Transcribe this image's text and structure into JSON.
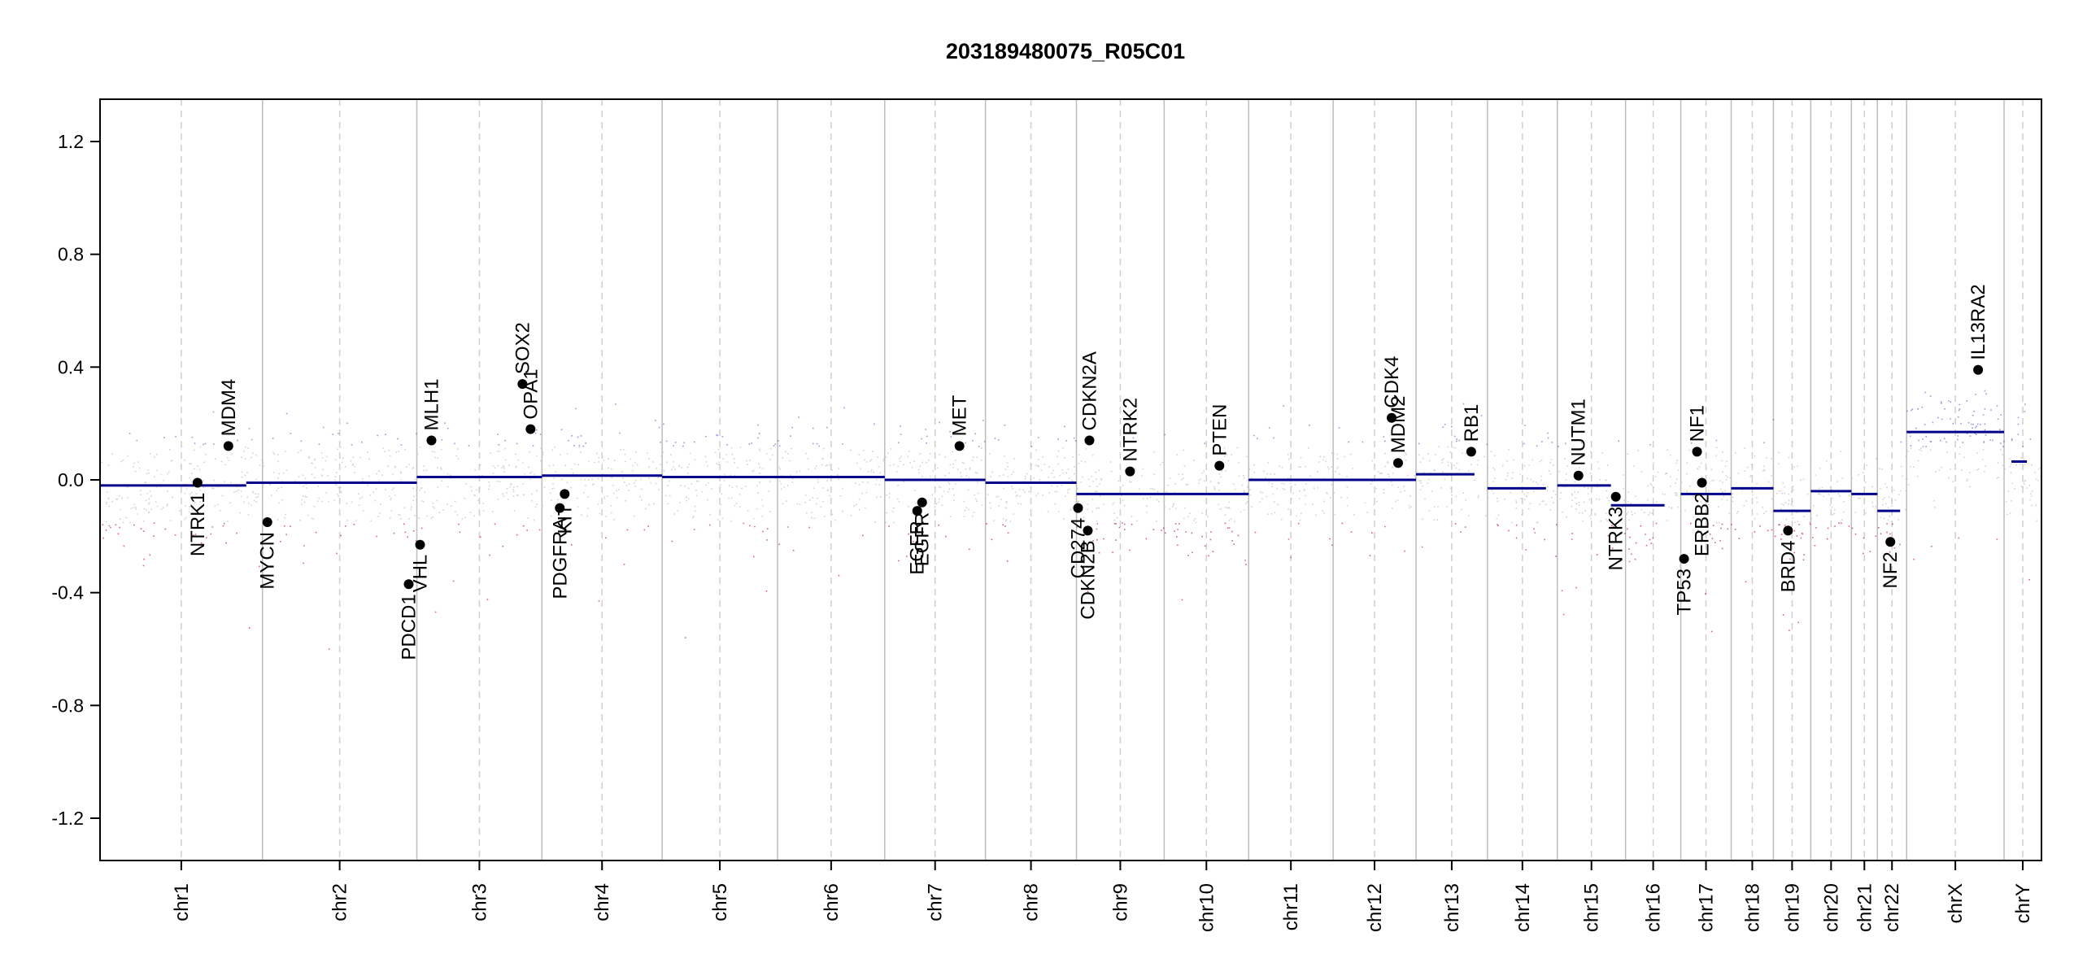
{
  "chart_data": {
    "type": "scatter",
    "title": "203189480075_R05C01",
    "ylim": [
      -1.35,
      1.35
    ],
    "y_ticks": [
      -1.2,
      -0.8,
      -0.4,
      0.0,
      0.4,
      0.8,
      1.2
    ],
    "y_tick_labels": [
      "-1.2",
      "-0.8",
      "-0.4",
      "0.0",
      "0.4",
      "0.8",
      "1.2"
    ],
    "chromosomes": [
      {
        "name": "chr1",
        "start": 0,
        "end": 1000
      },
      {
        "name": "chr2",
        "start": 1000,
        "end": 1950
      },
      {
        "name": "chr3",
        "start": 1950,
        "end": 2720
      },
      {
        "name": "chr4",
        "start": 2720,
        "end": 3460
      },
      {
        "name": "chr5",
        "start": 3460,
        "end": 4170
      },
      {
        "name": "chr6",
        "start": 4170,
        "end": 4830
      },
      {
        "name": "chr7",
        "start": 4830,
        "end": 5450
      },
      {
        "name": "chr8",
        "start": 5450,
        "end": 6010
      },
      {
        "name": "chr9",
        "start": 6010,
        "end": 6550
      },
      {
        "name": "chr10",
        "start": 6550,
        "end": 7070
      },
      {
        "name": "chr11",
        "start": 7070,
        "end": 7590
      },
      {
        "name": "chr12",
        "start": 7590,
        "end": 8100
      },
      {
        "name": "chr13",
        "start": 8100,
        "end": 8540
      },
      {
        "name": "chr14",
        "start": 8540,
        "end": 8970
      },
      {
        "name": "chr15",
        "start": 8970,
        "end": 9390
      },
      {
        "name": "chr16",
        "start": 9390,
        "end": 9730
      },
      {
        "name": "chr17",
        "start": 9730,
        "end": 10040
      },
      {
        "name": "chr18",
        "start": 10040,
        "end": 10300
      },
      {
        "name": "chr19",
        "start": 10300,
        "end": 10530
      },
      {
        "name": "chr20",
        "start": 10530,
        "end": 10780
      },
      {
        "name": "chr21",
        "start": 10780,
        "end": 10940
      },
      {
        "name": "chr22",
        "start": 10940,
        "end": 11120
      },
      {
        "name": "chrX",
        "start": 11120,
        "end": 11720
      },
      {
        "name": "chrY",
        "start": 11720,
        "end": 11950
      }
    ],
    "segments": [
      {
        "x0": 0,
        "x1": 900,
        "y": -0.02
      },
      {
        "x0": 900,
        "x1": 1950,
        "y": -0.01
      },
      {
        "x0": 1950,
        "x1": 2720,
        "y": 0.01
      },
      {
        "x0": 2720,
        "x1": 3460,
        "y": 0.015
      },
      {
        "x0": 3460,
        "x1": 4830,
        "y": 0.01
      },
      {
        "x0": 4830,
        "x1": 5450,
        "y": 0.0
      },
      {
        "x0": 5450,
        "x1": 6010,
        "y": -0.01
      },
      {
        "x0": 6010,
        "x1": 7070,
        "y": -0.05
      },
      {
        "x0": 7070,
        "x1": 8100,
        "y": 0.0
      },
      {
        "x0": 8100,
        "x1": 8460,
        "y": 0.02
      },
      {
        "x0": 8540,
        "x1": 8900,
        "y": -0.03
      },
      {
        "x0": 8970,
        "x1": 9300,
        "y": -0.02
      },
      {
        "x0": 9300,
        "x1": 9630,
        "y": -0.09
      },
      {
        "x0": 9730,
        "x1": 10040,
        "y": -0.05
      },
      {
        "x0": 10040,
        "x1": 10300,
        "y": -0.03
      },
      {
        "x0": 10300,
        "x1": 10530,
        "y": -0.11
      },
      {
        "x0": 10530,
        "x1": 10780,
        "y": -0.04
      },
      {
        "x0": 10780,
        "x1": 10940,
        "y": -0.05
      },
      {
        "x0": 10940,
        "x1": 11080,
        "y": -0.11
      },
      {
        "x0": 11120,
        "x1": 11720,
        "y": 0.17
      },
      {
        "x0": 11765,
        "x1": 11860,
        "y": 0.065
      }
    ],
    "genes": [
      {
        "name": "NTRK1",
        "x": 600,
        "y": -0.01,
        "label_dir": "down"
      },
      {
        "name": "MDM4",
        "x": 790,
        "y": 0.12,
        "label_dir": "up"
      },
      {
        "name": "MYCN",
        "x": 1030,
        "y": -0.15,
        "label_dir": "down"
      },
      {
        "name": "PDCD1",
        "x": 1900,
        "y": -0.37,
        "label_dir": "down"
      },
      {
        "name": "VHL",
        "x": 1970,
        "y": -0.23,
        "label_dir": "down"
      },
      {
        "name": "MLH1",
        "x": 2040,
        "y": 0.14,
        "label_dir": "up"
      },
      {
        "name": "SOX2",
        "x": 2600,
        "y": 0.34,
        "label_dir": "up"
      },
      {
        "name": "OPA1",
        "x": 2650,
        "y": 0.18,
        "label_dir": "up"
      },
      {
        "name": "PDGFRA",
        "x": 2830,
        "y": -0.1,
        "label_dir": "down"
      },
      {
        "name": "KIT",
        "x": 2860,
        "y": -0.05,
        "label_dir": "down"
      },
      {
        "name": "EGFR",
        "x": 5030,
        "y": -0.11,
        "label_dir": "down"
      },
      {
        "name": "EGFR",
        "x": 5060,
        "y": -0.08,
        "label_dir": "down"
      },
      {
        "name": "MET",
        "x": 5290,
        "y": 0.12,
        "label_dir": "up"
      },
      {
        "name": "CD274",
        "x": 6020,
        "y": -0.1,
        "label_dir": "down"
      },
      {
        "name": "CDKN2B",
        "x": 6080,
        "y": -0.18,
        "label_dir": "down"
      },
      {
        "name": "CDKN2A",
        "x": 6090,
        "y": 0.14,
        "label_dir": "up"
      },
      {
        "name": "NTRK2",
        "x": 6340,
        "y": 0.03,
        "label_dir": "up"
      },
      {
        "name": "PTEN",
        "x": 6890,
        "y": 0.05,
        "label_dir": "up"
      },
      {
        "name": "CDK4",
        "x": 7950,
        "y": 0.22,
        "label_dir": "up"
      },
      {
        "name": "MDM2",
        "x": 7990,
        "y": 0.06,
        "label_dir": "up"
      },
      {
        "name": "RB1",
        "x": 8440,
        "y": 0.1,
        "label_dir": "up"
      },
      {
        "name": "NUTM1",
        "x": 9100,
        "y": 0.015,
        "label_dir": "up"
      },
      {
        "name": "NTRK3",
        "x": 9330,
        "y": -0.06,
        "label_dir": "down"
      },
      {
        "name": "TP53",
        "x": 9750,
        "y": -0.28,
        "label_dir": "down"
      },
      {
        "name": "NF1",
        "x": 9830,
        "y": 0.1,
        "label_dir": "up"
      },
      {
        "name": "ERBB2",
        "x": 9860,
        "y": -0.01,
        "label_dir": "down"
      },
      {
        "name": "BRD4",
        "x": 10390,
        "y": -0.18,
        "label_dir": "down"
      },
      {
        "name": "NF2",
        "x": 11020,
        "y": -0.22,
        "label_dir": "down"
      },
      {
        "name": "IL13RA2",
        "x": 11560,
        "y": 0.39,
        "label_dir": "up"
      }
    ],
    "point_colors": {
      "gain": "#3b4cc0",
      "loss": "#b40426",
      "neutral": "#c8c8c8",
      "segment": "#00008b"
    }
  }
}
